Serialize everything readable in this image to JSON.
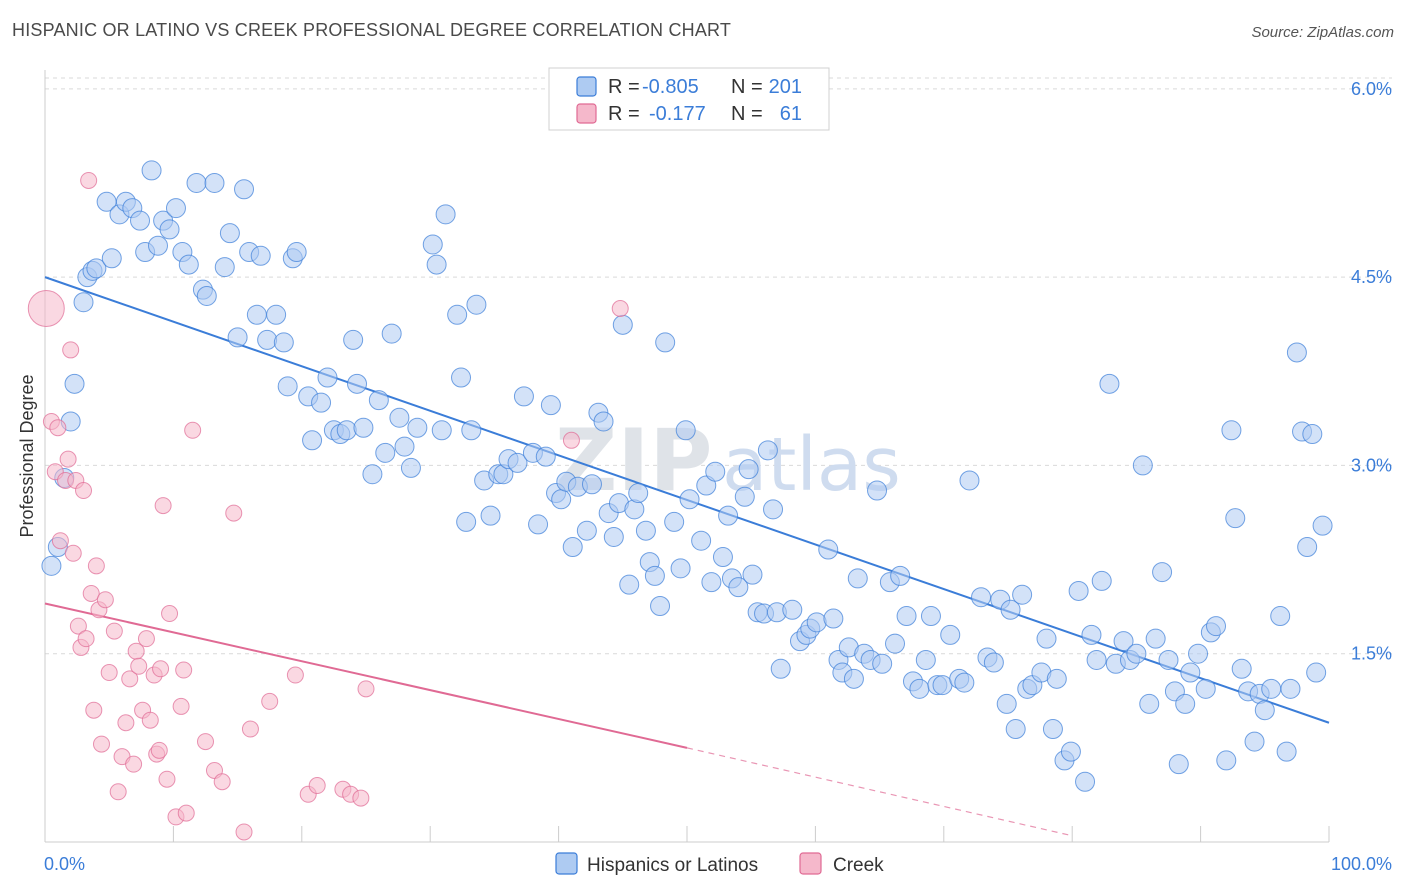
{
  "title": "HISPANIC OR LATINO VS CREEK PROFESSIONAL DEGREE CORRELATION CHART",
  "source": "Source: ZipAtlas.com",
  "watermark": {
    "zip": "ZIP",
    "atlas": "atlas"
  },
  "colors": {
    "blue": "#3b7dd8",
    "blue_fill": "#aecbf2",
    "pink": "#e06a94",
    "pink_fill": "#f5b8cb",
    "grid": "#d9d9d9",
    "value_text": "#3b7dd8"
  },
  "legend": {
    "r_label": "R =",
    "n_label": "N =",
    "rows": [
      {
        "r": "-0.805",
        "n": "201",
        "color": "#aecbf2",
        "edge": "#3b7dd8"
      },
      {
        "r": "-0.177",
        "n": "61",
        "color": "#f5b8cb",
        "edge": "#e06a94"
      }
    ]
  },
  "bottom_legend": [
    {
      "label": "Hispanics or Latinos",
      "color": "#aecbf2",
      "edge": "#3b7dd8"
    },
    {
      "label": "Creek",
      "color": "#f5b8cb",
      "edge": "#e06a94"
    }
  ],
  "chart_data": {
    "type": "scatter",
    "title": "HISPANIC OR LATINO VS CREEK PROFESSIONAL DEGREE CORRELATION CHART",
    "xlabel": "",
    "ylabel": "Professional Degree",
    "xlim": [
      0,
      100
    ],
    "ylim": [
      0,
      6.15
    ],
    "x_tick_labels": [
      "0.0%",
      "100.0%"
    ],
    "y_ticks": [
      1.5,
      3.0,
      4.5,
      6.0
    ],
    "y_tick_labels": [
      "1.5%",
      "3.0%",
      "4.5%",
      "6.0%"
    ],
    "grid": true,
    "legend_position": "top-center",
    "series": [
      {
        "name": "Hispanics or Latinos",
        "r": -0.805,
        "n": 201,
        "trend": {
          "x": [
            0,
            100
          ],
          "y": [
            4.5,
            0.95
          ],
          "style": "solid"
        },
        "points": [
          [
            0.5,
            2.2
          ],
          [
            1,
            2.35
          ],
          [
            1.5,
            2.9
          ],
          [
            2,
            3.35
          ],
          [
            2.3,
            3.65
          ],
          [
            3,
            4.3
          ],
          [
            3.3,
            4.5
          ],
          [
            3.7,
            4.55
          ],
          [
            4,
            4.57
          ],
          [
            5.2,
            4.65
          ],
          [
            4.8,
            5.1
          ],
          [
            5.8,
            5.0
          ],
          [
            6.3,
            5.1
          ],
          [
            6.8,
            5.05
          ],
          [
            7.4,
            4.95
          ],
          [
            7.8,
            4.7
          ],
          [
            8.3,
            5.35
          ],
          [
            8.8,
            4.75
          ],
          [
            9.2,
            4.95
          ],
          [
            9.7,
            4.88
          ],
          [
            10.2,
            5.05
          ],
          [
            10.7,
            4.7
          ],
          [
            11.2,
            4.6
          ],
          [
            11.8,
            5.25
          ],
          [
            12.3,
            4.4
          ],
          [
            12.6,
            4.35
          ],
          [
            13.2,
            5.25
          ],
          [
            14,
            4.58
          ],
          [
            14.4,
            4.85
          ],
          [
            15,
            4.02
          ],
          [
            15.5,
            5.2
          ],
          [
            15.9,
            4.7
          ],
          [
            16.5,
            4.2
          ],
          [
            16.8,
            4.67
          ],
          [
            17.3,
            4.0
          ],
          [
            18,
            4.2
          ],
          [
            18.6,
            3.98
          ],
          [
            18.9,
            3.63
          ],
          [
            19.3,
            4.65
          ],
          [
            19.6,
            4.7
          ],
          [
            20.5,
            3.55
          ],
          [
            20.8,
            3.2
          ],
          [
            21.5,
            3.5
          ],
          [
            22,
            3.7
          ],
          [
            22.5,
            3.28
          ],
          [
            23,
            3.25
          ],
          [
            23.5,
            3.28
          ],
          [
            24,
            4.0
          ],
          [
            24.3,
            3.65
          ],
          [
            24.8,
            3.3
          ],
          [
            25.5,
            2.93
          ],
          [
            26,
            3.52
          ],
          [
            26.5,
            3.1
          ],
          [
            27,
            4.05
          ],
          [
            27.6,
            3.38
          ],
          [
            28,
            3.15
          ],
          [
            28.5,
            2.98
          ],
          [
            29,
            3.3
          ],
          [
            30.2,
            4.76
          ],
          [
            30.5,
            4.6
          ],
          [
            30.9,
            3.28
          ],
          [
            31.2,
            5.0
          ],
          [
            32.1,
            4.2
          ],
          [
            32.4,
            3.7
          ],
          [
            32.8,
            2.55
          ],
          [
            33.2,
            3.28
          ],
          [
            33.6,
            4.28
          ],
          [
            34.2,
            2.88
          ],
          [
            34.7,
            2.6
          ],
          [
            35.3,
            2.93
          ],
          [
            35.7,
            2.93
          ],
          [
            36.1,
            3.05
          ],
          [
            36.8,
            3.02
          ],
          [
            37.3,
            3.55
          ],
          [
            38,
            3.1
          ],
          [
            38.4,
            2.53
          ],
          [
            39,
            3.07
          ],
          [
            39.4,
            3.48
          ],
          [
            39.8,
            2.78
          ],
          [
            40.2,
            2.73
          ],
          [
            40.6,
            2.87
          ],
          [
            41.1,
            2.35
          ],
          [
            41.5,
            2.83
          ],
          [
            42.2,
            2.48
          ],
          [
            42.6,
            2.85
          ],
          [
            43.1,
            3.42
          ],
          [
            43.5,
            3.35
          ],
          [
            43.9,
            2.62
          ],
          [
            44.3,
            2.43
          ],
          [
            44.7,
            2.7
          ],
          [
            45,
            4.12
          ],
          [
            45.5,
            2.05
          ],
          [
            45.9,
            2.65
          ],
          [
            46.2,
            2.78
          ],
          [
            46.8,
            2.48
          ],
          [
            47.1,
            2.23
          ],
          [
            47.5,
            2.12
          ],
          [
            47.9,
            1.88
          ],
          [
            48.3,
            3.98
          ],
          [
            49,
            2.55
          ],
          [
            49.5,
            2.18
          ],
          [
            49.9,
            3.28
          ],
          [
            50.2,
            2.73
          ],
          [
            51.1,
            2.4
          ],
          [
            51.5,
            2.84
          ],
          [
            51.9,
            2.07
          ],
          [
            52.2,
            2.95
          ],
          [
            52.8,
            2.27
          ],
          [
            53.2,
            2.6
          ],
          [
            53.5,
            2.1
          ],
          [
            54,
            2.03
          ],
          [
            54.5,
            2.75
          ],
          [
            54.8,
            2.97
          ],
          [
            55.1,
            2.13
          ],
          [
            55.5,
            1.83
          ],
          [
            56,
            1.82
          ],
          [
            56.3,
            3.12
          ],
          [
            56.7,
            2.65
          ],
          [
            57,
            1.83
          ],
          [
            57.3,
            1.38
          ],
          [
            58.2,
            1.85
          ],
          [
            58.8,
            1.6
          ],
          [
            59.3,
            1.65
          ],
          [
            59.6,
            1.7
          ],
          [
            60.1,
            1.75
          ],
          [
            61,
            2.33
          ],
          [
            61.4,
            1.78
          ],
          [
            61.8,
            1.45
          ],
          [
            62.1,
            1.35
          ],
          [
            62.6,
            1.55
          ],
          [
            63,
            1.3
          ],
          [
            63.3,
            2.1
          ],
          [
            63.8,
            1.5
          ],
          [
            64.3,
            1.45
          ],
          [
            64.8,
            2.8
          ],
          [
            65.2,
            1.42
          ],
          [
            65.8,
            2.07
          ],
          [
            66.2,
            1.58
          ],
          [
            66.6,
            2.12
          ],
          [
            67.1,
            1.8
          ],
          [
            67.6,
            1.28
          ],
          [
            68.1,
            1.22
          ],
          [
            68.6,
            1.45
          ],
          [
            69,
            1.8
          ],
          [
            69.5,
            1.25
          ],
          [
            69.9,
            1.25
          ],
          [
            70.5,
            1.65
          ],
          [
            71.2,
            1.3
          ],
          [
            71.6,
            1.27
          ],
          [
            72,
            2.88
          ],
          [
            72.9,
            1.95
          ],
          [
            73.4,
            1.47
          ],
          [
            73.9,
            1.43
          ],
          [
            74.4,
            1.93
          ],
          [
            74.9,
            1.1
          ],
          [
            75.2,
            1.85
          ],
          [
            75.6,
            0.9
          ],
          [
            76.1,
            1.97
          ],
          [
            76.5,
            1.22
          ],
          [
            76.9,
            1.25
          ],
          [
            77.6,
            1.35
          ],
          [
            78,
            1.62
          ],
          [
            78.5,
            0.9
          ],
          [
            78.8,
            1.3
          ],
          [
            79.4,
            0.65
          ],
          [
            79.9,
            0.72
          ],
          [
            80.5,
            2.0
          ],
          [
            81,
            0.48
          ],
          [
            81.5,
            1.65
          ],
          [
            81.9,
            1.45
          ],
          [
            82.3,
            2.08
          ],
          [
            82.9,
            3.65
          ],
          [
            83.4,
            1.42
          ],
          [
            84,
            1.6
          ],
          [
            84.5,
            1.45
          ],
          [
            85,
            1.5
          ],
          [
            85.5,
            3.0
          ],
          [
            86,
            1.1
          ],
          [
            86.5,
            1.62
          ],
          [
            87,
            2.15
          ],
          [
            87.5,
            1.45
          ],
          [
            88,
            1.2
          ],
          [
            88.3,
            0.62
          ],
          [
            88.8,
            1.1
          ],
          [
            89.2,
            1.35
          ],
          [
            89.8,
            1.5
          ],
          [
            90.4,
            1.22
          ],
          [
            90.8,
            1.67
          ],
          [
            91.2,
            1.72
          ],
          [
            92,
            0.65
          ],
          [
            92.4,
            3.28
          ],
          [
            92.7,
            2.58
          ],
          [
            93.2,
            1.38
          ],
          [
            93.7,
            1.2
          ],
          [
            94.2,
            0.8
          ],
          [
            94.6,
            1.18
          ],
          [
            95,
            1.05
          ],
          [
            95.5,
            1.22
          ],
          [
            96.2,
            1.8
          ],
          [
            96.7,
            0.72
          ],
          [
            97,
            1.22
          ],
          [
            97.5,
            3.9
          ],
          [
            97.9,
            3.27
          ],
          [
            98.3,
            2.35
          ],
          [
            98.7,
            3.25
          ],
          [
            99,
            1.35
          ],
          [
            99.5,
            2.52
          ]
        ]
      },
      {
        "name": "Creek",
        "r": -0.177,
        "n": 61,
        "trend": {
          "x": [
            0,
            50
          ],
          "y": [
            1.9,
            0.75
          ],
          "style": "solid",
          "dashed_to": [
            80,
            0.05
          ]
        },
        "points": [
          [
            0.1,
            4.25
          ],
          [
            0.5,
            3.35
          ],
          [
            0.8,
            2.95
          ],
          [
            1,
            3.3
          ],
          [
            1.2,
            2.4
          ],
          [
            1.6,
            2.88
          ],
          [
            1.8,
            3.05
          ],
          [
            2,
            3.92
          ],
          [
            2.2,
            2.3
          ],
          [
            2.4,
            2.88
          ],
          [
            2.6,
            1.72
          ],
          [
            2.8,
            1.55
          ],
          [
            3,
            2.8
          ],
          [
            3.2,
            1.62
          ],
          [
            3.4,
            5.27
          ],
          [
            3.6,
            1.98
          ],
          [
            3.8,
            1.05
          ],
          [
            4,
            2.2
          ],
          [
            4.2,
            1.85
          ],
          [
            4.4,
            0.78
          ],
          [
            4.7,
            1.93
          ],
          [
            5,
            1.35
          ],
          [
            5.4,
            1.68
          ],
          [
            5.7,
            0.4
          ],
          [
            6,
            0.68
          ],
          [
            6.3,
            0.95
          ],
          [
            6.6,
            1.3
          ],
          [
            6.9,
            0.62
          ],
          [
            7.1,
            1.52
          ],
          [
            7.3,
            1.4
          ],
          [
            7.6,
            1.05
          ],
          [
            7.9,
            1.62
          ],
          [
            8.2,
            0.97
          ],
          [
            8.5,
            1.33
          ],
          [
            8.7,
            0.7
          ],
          [
            8.9,
            0.73
          ],
          [
            9,
            1.38
          ],
          [
            9.2,
            2.68
          ],
          [
            9.5,
            0.5
          ],
          [
            9.7,
            1.82
          ],
          [
            10.2,
            0.2
          ],
          [
            10.6,
            1.08
          ],
          [
            10.8,
            1.37
          ],
          [
            11,
            0.23
          ],
          [
            11.5,
            3.28
          ],
          [
            12.5,
            0.8
          ],
          [
            13.2,
            0.57
          ],
          [
            13.8,
            0.48
          ],
          [
            14.7,
            2.62
          ],
          [
            15.5,
            0.08
          ],
          [
            16,
            0.9
          ],
          [
            17.5,
            1.12
          ],
          [
            19.5,
            1.33
          ],
          [
            20.5,
            0.38
          ],
          [
            21.2,
            0.45
          ],
          [
            23.2,
            0.42
          ],
          [
            23.8,
            0.38
          ],
          [
            24.6,
            0.35
          ],
          [
            25,
            1.22
          ],
          [
            41,
            3.2
          ],
          [
            44.8,
            4.25
          ]
        ]
      }
    ]
  }
}
